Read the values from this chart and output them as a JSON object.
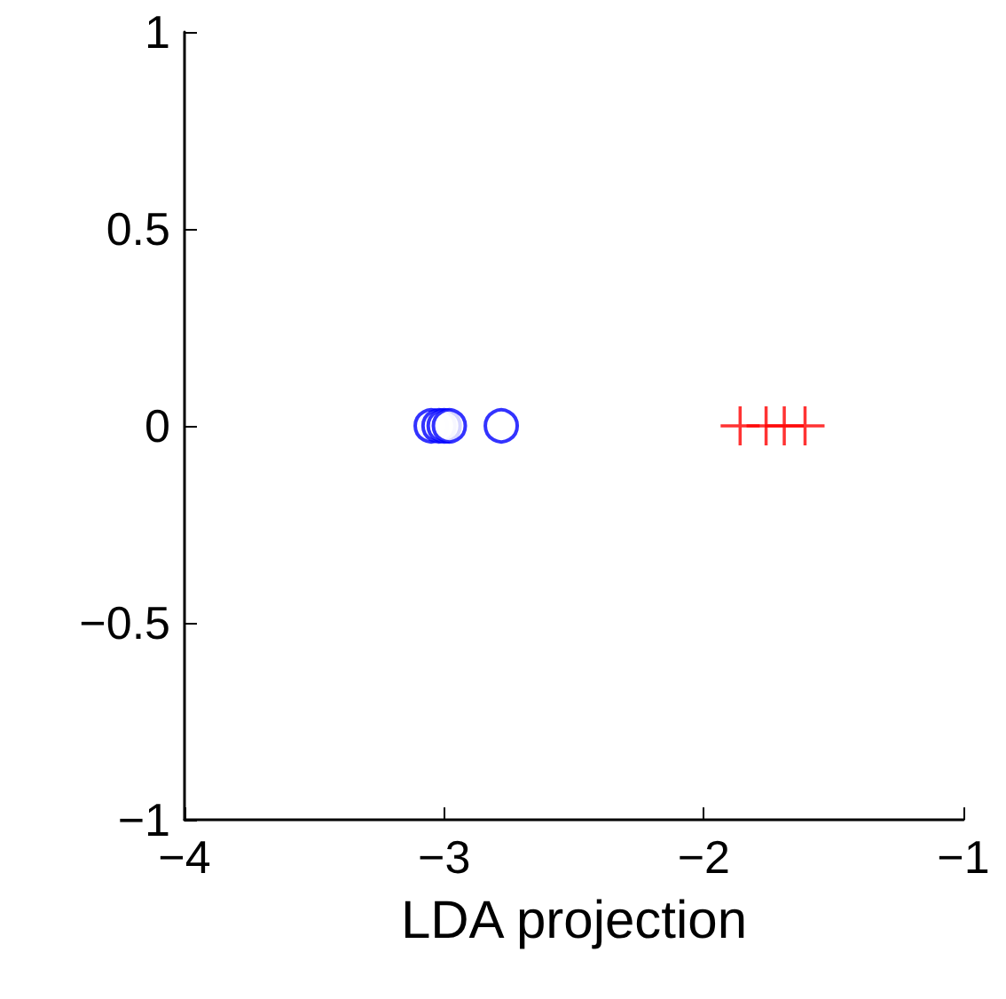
{
  "chart_data": {
    "type": "scatter",
    "xlabel": "LDA projection",
    "xlim": [
      -4,
      -1
    ],
    "xticks": [
      {
        "value": -4,
        "label": "−4"
      },
      {
        "value": -3,
        "label": "−3"
      },
      {
        "value": -2,
        "label": "−2"
      },
      {
        "value": -1,
        "label": "−1"
      }
    ],
    "ylim": [
      -1,
      1
    ],
    "yticks": [
      {
        "value": -1,
        "label": "−1"
      },
      {
        "value": -0.5,
        "label": "−0.5"
      },
      0,
      0.5,
      1
    ],
    "grid": false,
    "series": [
      {
        "color": "#0000ff",
        "marker": "circle",
        "x": [
          -3.05,
          -3.02,
          -3.0,
          -2.98,
          -2.78
        ],
        "values": [
          0,
          0,
          0,
          0,
          0
        ]
      },
      {
        "color": "#ff0000",
        "marker": "cross",
        "x": [
          -1.86,
          -1.76,
          -1.69,
          -1.61
        ],
        "values": [
          0,
          0,
          0,
          0
        ]
      }
    ]
  }
}
